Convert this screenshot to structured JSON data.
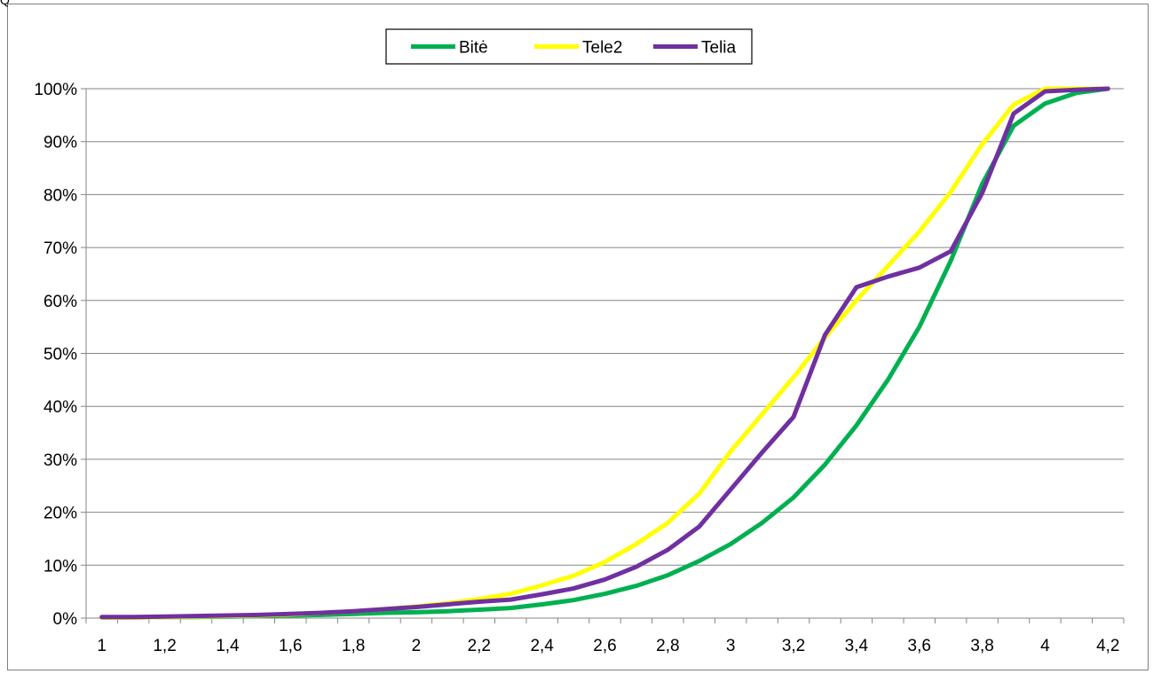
{
  "top_fragment": "Q",
  "chart_data": {
    "type": "line",
    "title": "",
    "xlabel": "",
    "ylabel": "",
    "x": [
      1,
      1.1,
      1.2,
      1.3,
      1.4,
      1.5,
      1.6,
      1.7,
      1.8,
      1.9,
      2,
      2.1,
      2.2,
      2.3,
      2.4,
      2.5,
      2.6,
      2.7,
      2.8,
      2.9,
      3,
      3.1,
      3.2,
      3.3,
      3.4,
      3.5,
      3.6,
      3.7,
      3.8,
      3.9,
      4,
      4.1,
      4.2
    ],
    "x_tick_labels": [
      "1",
      "1,2",
      "1,4",
      "1,6",
      "1,8",
      "2",
      "2,2",
      "2,4",
      "2,6",
      "2,8",
      "3",
      "3,2",
      "3,4",
      "3,6",
      "3,8",
      "4",
      "4,2"
    ],
    "x_ticks": [
      1,
      1.2,
      1.4,
      1.6,
      1.8,
      2,
      2.2,
      2.4,
      2.6,
      2.8,
      3,
      3.2,
      3.4,
      3.6,
      3.8,
      4,
      4.2
    ],
    "y_tick_labels": [
      "0%",
      "10%",
      "20%",
      "30%",
      "40%",
      "50%",
      "60%",
      "70%",
      "80%",
      "90%",
      "100%"
    ],
    "y_ticks": [
      0,
      10,
      20,
      30,
      40,
      50,
      60,
      70,
      80,
      90,
      100
    ],
    "xlim": [
      0.95,
      4.25
    ],
    "ylim": [
      0,
      100
    ],
    "y_unit": "%",
    "grid": "horizontal",
    "legend_position": "top-center",
    "series": [
      {
        "name": "Bitė",
        "color": "#00b050",
        "values": [
          0.1,
          0.1,
          0.2,
          0.2,
          0.3,
          0.4,
          0.5,
          0.6,
          0.8,
          1.0,
          1.1,
          1.3,
          1.6,
          1.9,
          2.6,
          3.4,
          4.6,
          6.1,
          8.1,
          10.8,
          14.0,
          18.0,
          22.8,
          29.0,
          36.4,
          45.0,
          55.0,
          67.5,
          82.0,
          93.0,
          97.2,
          99.2,
          100
        ]
      },
      {
        "name": "Tele2",
        "color": "#ffff00",
        "values": [
          0.1,
          0.1,
          0.2,
          0.3,
          0.4,
          0.5,
          0.7,
          1.0,
          1.3,
          1.7,
          2.2,
          2.8,
          3.6,
          4.6,
          6.2,
          8.0,
          10.6,
          14.0,
          18.0,
          23.5,
          31.5,
          38.5,
          45.5,
          53.0,
          60.0,
          66.5,
          73.0,
          80.5,
          89.5,
          97.0,
          100,
          100,
          100
        ]
      },
      {
        "name": "Telia",
        "color": "#7030a0",
        "values": [
          0.2,
          0.2,
          0.3,
          0.4,
          0.5,
          0.6,
          0.8,
          1.0,
          1.3,
          1.7,
          2.1,
          2.6,
          3.1,
          3.5,
          4.5,
          5.6,
          7.3,
          9.7,
          12.9,
          17.3,
          24.3,
          31.3,
          38.0,
          53.5,
          62.5,
          64.5,
          66.2,
          69.3,
          80.3,
          95.3,
          99.5,
          99.8,
          100
        ]
      }
    ]
  }
}
